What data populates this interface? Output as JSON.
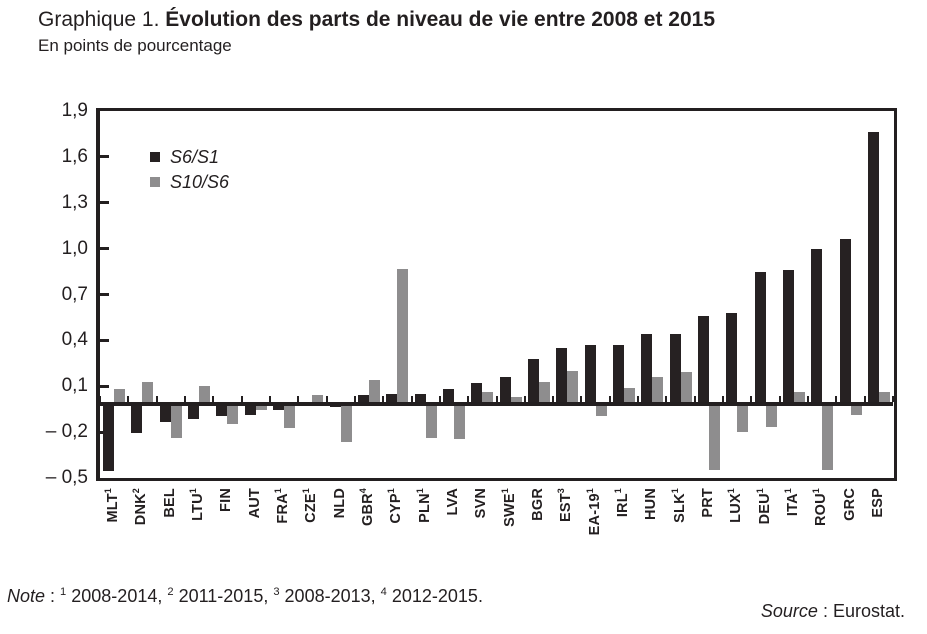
{
  "chart_data": {
    "type": "bar",
    "title_prefix": "Graphique 1. ",
    "title_bold": "Évolution des parts de niveau de vie entre 2008 et 2015",
    "subtitle": "En points de pourcentage",
    "legend_position": "top-left-inside",
    "grid": false,
    "ylim": [
      -0.5,
      1.9
    ],
    "ytick_step": 0.3,
    "ytick_labels": [
      "1,9",
      "1,6",
      "1,3",
      "1,0",
      "0,7",
      "0,4",
      "0,1",
      "– 0,2",
      "– 0,5"
    ],
    "categories": [
      {
        "label": "MLT",
        "sup": "1"
      },
      {
        "label": "DNK",
        "sup": "2"
      },
      {
        "label": "BEL",
        "sup": ""
      },
      {
        "label": "LTU",
        "sup": "1"
      },
      {
        "label": "FIN",
        "sup": ""
      },
      {
        "label": "AUT",
        "sup": ""
      },
      {
        "label": "FRA",
        "sup": "1"
      },
      {
        "label": "CZE",
        "sup": "1"
      },
      {
        "label": "NLD",
        "sup": ""
      },
      {
        "label": "GBR",
        "sup": "4"
      },
      {
        "label": "CYP",
        "sup": "1"
      },
      {
        "label": "PLN",
        "sup": "1"
      },
      {
        "label": "LVA",
        "sup": ""
      },
      {
        "label": "SVN",
        "sup": ""
      },
      {
        "label": "SWE",
        "sup": "1"
      },
      {
        "label": "BGR",
        "sup": ""
      },
      {
        "label": "EST",
        "sup": "3"
      },
      {
        "label": "EA-19",
        "sup": "1"
      },
      {
        "label": "IRL",
        "sup": "1"
      },
      {
        "label": "HUN",
        "sup": ""
      },
      {
        "label": "SLK",
        "sup": "1"
      },
      {
        "label": "PRT",
        "sup": ""
      },
      {
        "label": "LUX",
        "sup": "1"
      },
      {
        "label": "DEU",
        "sup": "1"
      },
      {
        "label": "ITA",
        "sup": "1"
      },
      {
        "label": "ROU",
        "sup": "1"
      },
      {
        "label": "GRC",
        "sup": ""
      },
      {
        "label": "ESP",
        "sup": ""
      }
    ],
    "series": [
      {
        "name": "S6/S1",
        "color": "#262122",
        "values": [
          -0.43,
          -0.18,
          -0.11,
          -0.09,
          -0.07,
          -0.06,
          -0.03,
          0.0,
          -0.01,
          0.04,
          0.05,
          0.05,
          0.08,
          0.12,
          0.16,
          0.28,
          0.35,
          0.37,
          0.37,
          0.44,
          0.44,
          0.56,
          0.58,
          0.85,
          0.86,
          1.0,
          1.06,
          1.76
        ]
      },
      {
        "name": "S10/S6",
        "color": "#8e8d8e",
        "values": [
          0.08,
          0.13,
          -0.21,
          0.1,
          -0.12,
          -0.03,
          -0.15,
          0.04,
          -0.24,
          0.14,
          0.87,
          -0.21,
          -0.22,
          0.06,
          0.03,
          0.13,
          0.2,
          -0.07,
          0.09,
          0.16,
          0.19,
          -0.42,
          -0.17,
          -0.14,
          0.06,
          -0.42,
          -0.06,
          0.06
        ]
      }
    ],
    "note": {
      "label": "Note",
      "sep": " : ",
      "items": [
        {
          "sup": "1",
          "text": "2008-2014,"
        },
        {
          "sup": "2",
          "text": "2011-2015,"
        },
        {
          "sup": "3",
          "text": "2008-2013,"
        },
        {
          "sup": "4",
          "text": "2012-2015."
        }
      ]
    },
    "source": {
      "label": "Source",
      "text": " : Eurostat."
    }
  }
}
